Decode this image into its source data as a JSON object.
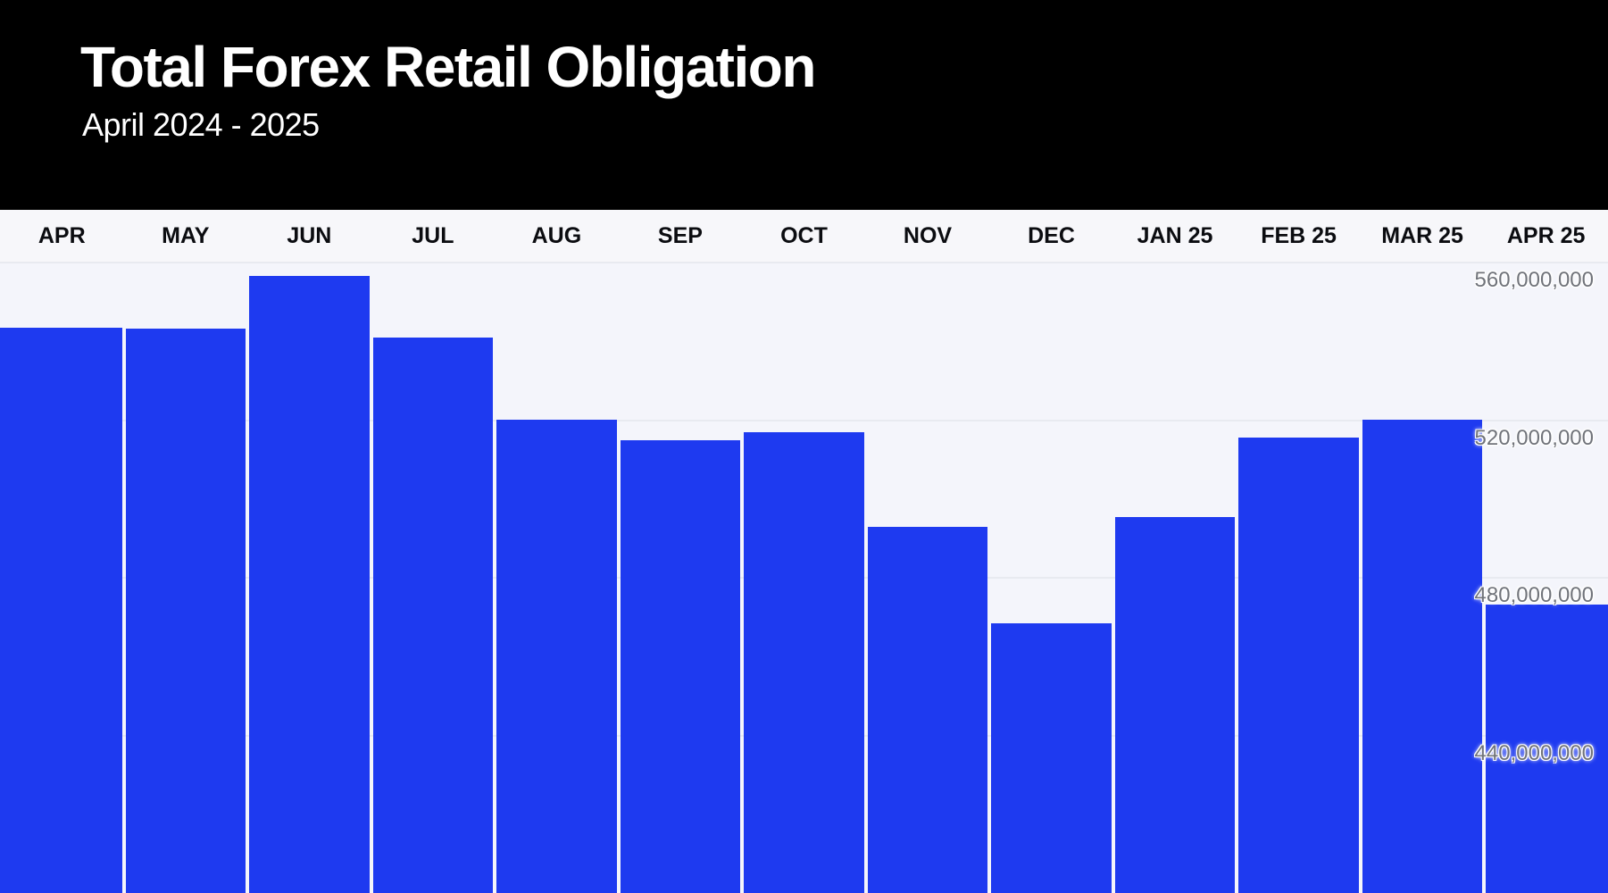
{
  "header": {
    "title": "Total Forex Retail Obligation",
    "subtitle": "April 2024 - 2025"
  },
  "colors": {
    "header_bg": "#000000",
    "bar": "#1e3af0",
    "plot_bg": "#f4f5fb",
    "label_strip_bg": "#f7f7fa",
    "gridline": "#e8eaf0",
    "tick_label": "#70737a",
    "month_label": "#0b0c10"
  },
  "chart_data": {
    "type": "bar",
    "title": "Total Forex Retail Obligation",
    "subtitle": "April 2024 - 2025",
    "xlabel": "",
    "ylabel": "",
    "categories": [
      "APR",
      "MAY",
      "JUN",
      "JUL",
      "AUG",
      "SEP",
      "OCT",
      "NOV",
      "DEC",
      "JAN 25",
      "FEB 25",
      "MAR 25",
      "APR 25"
    ],
    "values": [
      543500000,
      543200000,
      556500000,
      541000000,
      520200000,
      514800000,
      517000000,
      493000000,
      468500000,
      495400000,
      515600000,
      520100000,
      473300000
    ],
    "ylim": [
      400000000,
      560000000
    ],
    "yticks": [
      {
        "value": 560000000,
        "label": "560,000,000"
      },
      {
        "value": 520000000,
        "label": "520,000,000"
      },
      {
        "value": 480000000,
        "label": "480,000,000"
      },
      {
        "value": 440000000,
        "label": "440,000,000"
      }
    ],
    "grid": true,
    "legend": "none",
    "tick_label_position": "right, below gridline"
  }
}
